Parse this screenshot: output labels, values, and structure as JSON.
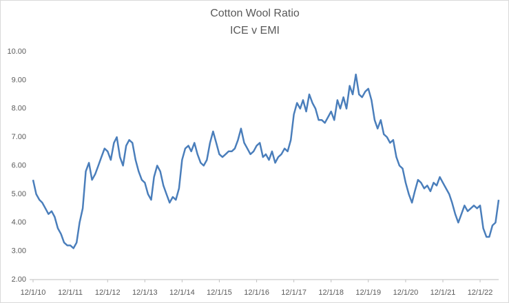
{
  "chart_data": {
    "type": "line",
    "title": "Cotton Wool  Ratio",
    "subtitle": "ICE v EMI",
    "x": [
      "12/1/10",
      "1/1/11",
      "2/1/11",
      "3/1/11",
      "4/1/11",
      "5/1/11",
      "6/1/11",
      "7/1/11",
      "8/1/11",
      "9/1/11",
      "10/1/11",
      "11/1/11",
      "12/1/11",
      "1/1/12",
      "2/1/12",
      "3/1/12",
      "4/1/12",
      "5/1/12",
      "6/1/12",
      "7/1/12",
      "8/1/12",
      "9/1/12",
      "10/1/12",
      "11/1/12",
      "12/1/12",
      "1/1/13",
      "2/1/13",
      "3/1/13",
      "4/1/13",
      "5/1/13",
      "6/1/13",
      "7/1/13",
      "8/1/13",
      "9/1/13",
      "10/1/13",
      "11/1/13",
      "12/1/13",
      "1/1/14",
      "2/1/14",
      "3/1/14",
      "4/1/14",
      "5/1/14",
      "6/1/14",
      "7/1/14",
      "8/1/14",
      "9/1/14",
      "10/1/14",
      "11/1/14",
      "12/1/14",
      "1/1/15",
      "2/1/15",
      "3/1/15",
      "4/1/15",
      "5/1/15",
      "6/1/15",
      "7/1/15",
      "8/1/15",
      "9/1/15",
      "10/1/15",
      "11/1/15",
      "12/1/15",
      "1/1/16",
      "2/1/16",
      "3/1/16",
      "4/1/16",
      "5/1/16",
      "6/1/16",
      "7/1/16",
      "8/1/16",
      "9/1/16",
      "10/1/16",
      "11/1/16",
      "12/1/16",
      "1/1/17",
      "2/1/17",
      "3/1/17",
      "4/1/17",
      "5/1/17",
      "6/1/17",
      "7/1/17",
      "8/1/17",
      "9/1/17",
      "10/1/17",
      "11/1/17",
      "12/1/17",
      "1/1/18",
      "2/1/18",
      "3/1/18",
      "4/1/18",
      "5/1/18",
      "6/1/18",
      "7/1/18",
      "8/1/18",
      "9/1/18",
      "10/1/18",
      "11/1/18",
      "12/1/18",
      "1/1/19",
      "2/1/19",
      "3/1/19",
      "4/1/19",
      "5/1/19",
      "6/1/19",
      "7/1/19",
      "8/1/19",
      "9/1/19",
      "10/1/19",
      "11/1/19",
      "12/1/19",
      "1/1/20",
      "2/1/20",
      "3/1/20",
      "4/1/20",
      "5/1/20",
      "6/1/20",
      "7/1/20",
      "8/1/20",
      "9/1/20",
      "10/1/20",
      "11/1/20",
      "12/1/20",
      "1/1/21",
      "2/1/21",
      "3/1/21",
      "4/1/21",
      "5/1/21",
      "6/1/21",
      "7/1/21",
      "8/1/21",
      "9/1/21",
      "10/1/21",
      "11/1/21",
      "12/1/21",
      "1/1/22",
      "2/1/22",
      "3/1/22",
      "4/1/22",
      "5/1/22",
      "6/1/22",
      "7/1/22",
      "8/1/22",
      "9/1/22",
      "10/1/22",
      "11/1/22",
      "12/1/22",
      "1/1/23",
      "2/1/23",
      "3/1/23",
      "4/1/23",
      "5/1/23",
      "6/1/23"
    ],
    "series": [
      {
        "color": "#4a7ebb",
        "values": [
          5.5,
          5.0,
          4.8,
          4.7,
          4.5,
          4.3,
          4.4,
          4.2,
          3.8,
          3.6,
          3.3,
          3.2,
          3.2,
          3.1,
          3.3,
          4.0,
          4.5,
          5.8,
          6.1,
          5.5,
          5.7,
          6.0,
          6.3,
          6.6,
          6.5,
          6.2,
          6.8,
          7.0,
          6.3,
          6.0,
          6.7,
          6.9,
          6.8,
          6.2,
          5.8,
          5.5,
          5.4,
          5.0,
          4.8,
          5.6,
          6.0,
          5.8,
          5.3,
          5.0,
          4.7,
          4.9,
          4.8,
          5.2,
          6.2,
          6.6,
          6.7,
          6.5,
          6.8,
          6.4,
          6.1,
          6.0,
          6.2,
          6.8,
          7.2,
          6.8,
          6.4,
          6.3,
          6.4,
          6.5,
          6.5,
          6.6,
          6.9,
          7.3,
          6.8,
          6.6,
          6.4,
          6.5,
          6.7,
          6.8,
          6.3,
          6.4,
          6.2,
          6.5,
          6.1,
          6.3,
          6.4,
          6.6,
          6.5,
          6.9,
          7.8,
          8.2,
          8.0,
          8.3,
          7.9,
          8.5,
          8.2,
          8.0,
          7.6,
          7.6,
          7.5,
          7.7,
          7.9,
          7.6,
          8.3,
          8.0,
          8.4,
          8.0,
          8.8,
          8.5,
          9.2,
          8.5,
          8.4,
          8.6,
          8.7,
          8.3,
          7.6,
          7.3,
          7.6,
          7.1,
          7.0,
          6.8,
          6.9,
          6.3,
          6.0,
          5.9,
          5.4,
          5.0,
          4.7,
          5.1,
          5.5,
          5.4,
          5.2,
          5.3,
          5.1,
          5.4,
          5.3,
          5.6,
          5.4,
          5.2,
          5.0,
          4.7,
          4.3,
          4.0,
          4.3,
          4.6,
          4.4,
          4.5,
          4.6,
          4.5,
          4.6,
          3.8,
          3.5,
          3.5,
          3.9,
          4.0,
          4.8
        ]
      }
    ],
    "xlim": [
      "12/1/10",
      "6/1/23"
    ],
    "xticks": [
      "12/1/10",
      "12/1/11",
      "12/1/12",
      "12/1/13",
      "12/1/14",
      "12/1/15",
      "12/1/16",
      "12/1/17",
      "12/1/18",
      "12/1/19",
      "12/1/20",
      "12/1/21",
      "12/1/22"
    ],
    "ylim": [
      2,
      10
    ],
    "yticks": [
      {
        "value": 2,
        "label": "2.00"
      },
      {
        "value": 3,
        "label": "3.00"
      },
      {
        "value": 4,
        "label": "4.00"
      },
      {
        "value": 5,
        "label": "5.00"
      },
      {
        "value": 6,
        "label": "6.00"
      },
      {
        "value": 7,
        "label": "7.00"
      },
      {
        "value": 8,
        "label": "8.00"
      },
      {
        "value": 9,
        "label": "9.00"
      },
      {
        "value": 10,
        "label": "10.00"
      }
    ],
    "grid": false
  }
}
